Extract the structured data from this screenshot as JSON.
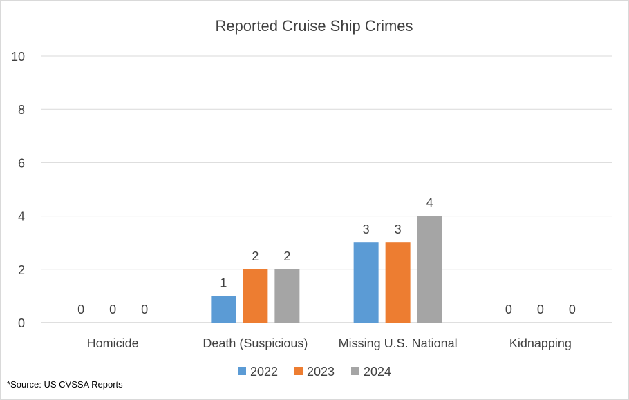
{
  "chart_data": {
    "type": "bar",
    "title": "Reported Cruise Ship Crimes",
    "xlabel": "",
    "ylabel": "",
    "categories": [
      "Homicide",
      "Death (Suspicious)",
      "Missing U.S. National",
      "Kidnapping"
    ],
    "series": [
      {
        "name": "2022",
        "color": "#5b9bd5",
        "values": [
          0,
          1,
          3,
          0
        ]
      },
      {
        "name": "2023",
        "color": "#ed7d31",
        "values": [
          0,
          2,
          3,
          0
        ]
      },
      {
        "name": "2024",
        "color": "#a5a5a5",
        "values": [
          0,
          2,
          4,
          0
        ]
      }
    ],
    "ylim": [
      0,
      10
    ],
    "yticks": [
      0,
      2,
      4,
      6,
      8,
      10
    ],
    "grid": true,
    "legend": "bottom",
    "data_labels": true
  },
  "footnote": "*Source: US CVSSA Reports"
}
